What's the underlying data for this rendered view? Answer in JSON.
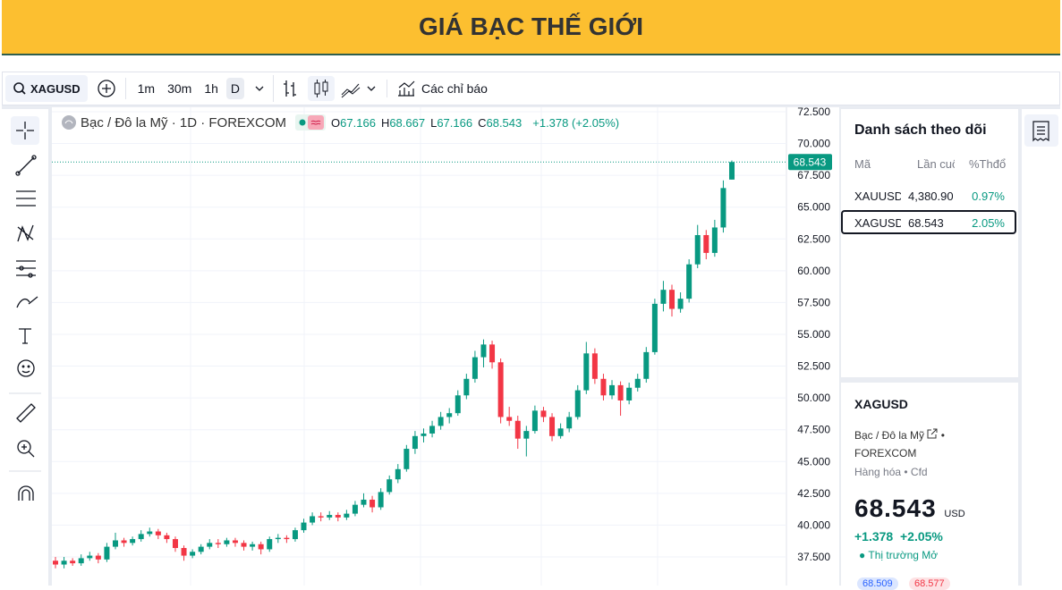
{
  "header": {
    "title": "GIÁ BẠC THẾ GIỚI"
  },
  "toolbar": {
    "symbol": "XAGUSD",
    "intervals": [
      "1m",
      "30m",
      "1h",
      "D"
    ],
    "indicators": "Các chỉ báo"
  },
  "chart_data": {
    "type": "candlestick",
    "title": "Bạc / Đô la Mỹ · 1D · FOREXCOM",
    "legend": [
      {
        "key": "O",
        "value": "67.166"
      },
      {
        "key": "H",
        "value": "68.667"
      },
      {
        "key": "L",
        "value": "67.166"
      },
      {
        "key": "C",
        "value": "68.543"
      }
    ],
    "change": "+1.378 (+2.05%)",
    "ylim": [
      35.25,
      72.85
    ],
    "yticks": [
      {
        "value": 37.5,
        "label": "37.500"
      },
      {
        "value": 40,
        "label": "40.000"
      },
      {
        "value": 42.5,
        "label": "42.500"
      },
      {
        "value": 45,
        "label": "45.000"
      },
      {
        "value": 47.5,
        "label": "47.500"
      },
      {
        "value": 50,
        "label": "50.000"
      },
      {
        "value": 52.5,
        "label": "52.500"
      },
      {
        "value": 55,
        "label": "55.000"
      },
      {
        "value": 57.5,
        "label": "57.500"
      },
      {
        "value": 60,
        "label": "60.000"
      },
      {
        "value": 62.5,
        "label": "62.500"
      },
      {
        "value": 65,
        "label": "65.000"
      },
      {
        "value": 67.5,
        "label": "67.500"
      },
      {
        "value": 70,
        "label": "70.000"
      },
      {
        "value": 72.5,
        "label": "72.500"
      }
    ],
    "grid": true,
    "last_price": {
      "value": 68.543,
      "label": "68.543"
    },
    "up_color": "#089981",
    "down_color": "#f23645",
    "candles": [
      [
        37.2,
        37.5,
        36.6,
        36.9
      ],
      [
        36.9,
        37.5,
        36.6,
        37.2
      ],
      [
        37.2,
        37.4,
        36.8,
        37.0
      ],
      [
        37.0,
        37.7,
        36.8,
        37.4
      ],
      [
        37.4,
        37.9,
        37.2,
        37.6
      ],
      [
        37.6,
        37.8,
        37.0,
        37.3
      ],
      [
        37.3,
        38.6,
        37.1,
        38.3
      ],
      [
        38.3,
        39.4,
        38.1,
        38.8
      ],
      [
        38.8,
        39.0,
        38.3,
        38.6
      ],
      [
        38.6,
        39.1,
        38.4,
        38.9
      ],
      [
        38.9,
        39.6,
        38.7,
        39.3
      ],
      [
        39.3,
        39.8,
        39.1,
        39.5
      ],
      [
        39.5,
        39.7,
        38.9,
        39.2
      ],
      [
        39.2,
        39.4,
        38.6,
        38.9
      ],
      [
        38.9,
        39.1,
        37.9,
        38.2
      ],
      [
        38.2,
        38.4,
        37.2,
        37.6
      ],
      [
        37.6,
        38.1,
        37.4,
        37.9
      ],
      [
        37.9,
        38.5,
        37.7,
        38.3
      ],
      [
        38.3,
        38.9,
        38.1,
        38.6
      ],
      [
        38.6,
        38.9,
        38.2,
        38.5
      ],
      [
        38.5,
        39.0,
        38.3,
        38.8
      ],
      [
        38.8,
        39.0,
        38.3,
        38.6
      ],
      [
        38.6,
        38.8,
        38.0,
        38.3
      ],
      [
        38.3,
        38.7,
        38.0,
        38.5
      ],
      [
        38.5,
        38.7,
        37.7,
        38.1
      ],
      [
        38.1,
        39.1,
        37.9,
        38.9
      ],
      [
        38.9,
        39.3,
        38.6,
        39.0
      ],
      [
        39.0,
        39.2,
        38.6,
        38.9
      ],
      [
        38.9,
        39.8,
        38.7,
        39.6
      ],
      [
        39.6,
        40.5,
        39.4,
        40.2
      ],
      [
        40.2,
        41.0,
        40.0,
        40.7
      ],
      [
        40.7,
        41.0,
        40.3,
        40.6
      ],
      [
        40.6,
        41.1,
        40.4,
        40.8
      ],
      [
        40.8,
        41.0,
        40.3,
        40.6
      ],
      [
        40.6,
        41.2,
        40.4,
        40.9
      ],
      [
        40.9,
        41.9,
        40.7,
        41.6
      ],
      [
        41.6,
        42.5,
        41.4,
        42.0
      ],
      [
        42.0,
        42.3,
        41.0,
        41.4
      ],
      [
        41.4,
        42.9,
        41.2,
        42.6
      ],
      [
        42.6,
        43.9,
        42.4,
        43.6
      ],
      [
        43.6,
        44.8,
        43.3,
        44.4
      ],
      [
        44.4,
        46.3,
        44.2,
        46.0
      ],
      [
        46.0,
        47.4,
        45.6,
        47.0
      ],
      [
        47.0,
        47.6,
        46.5,
        47.2
      ],
      [
        47.2,
        48.2,
        46.9,
        47.8
      ],
      [
        47.8,
        48.9,
        47.5,
        48.5
      ],
      [
        48.5,
        49.2,
        48.0,
        48.8
      ],
      [
        48.8,
        50.6,
        48.6,
        50.2
      ],
      [
        50.2,
        51.9,
        49.9,
        51.5
      ],
      [
        51.5,
        53.7,
        51.2,
        53.2
      ],
      [
        53.2,
        54.6,
        52.4,
        54.2
      ],
      [
        54.2,
        54.5,
        52.3,
        52.8
      ],
      [
        52.8,
        53.1,
        48.0,
        48.5
      ],
      [
        48.5,
        49.3,
        47.8,
        48.2
      ],
      [
        48.2,
        48.6,
        46.0,
        46.8
      ],
      [
        46.8,
        47.8,
        45.4,
        47.4
      ],
      [
        47.4,
        49.4,
        47.2,
        49.0
      ],
      [
        49.0,
        49.3,
        48.1,
        48.5
      ],
      [
        48.5,
        48.8,
        46.6,
        47.0
      ],
      [
        47.0,
        48.0,
        46.8,
        47.6
      ],
      [
        47.6,
        48.9,
        47.3,
        48.5
      ],
      [
        48.5,
        51.0,
        48.3,
        50.6
      ],
      [
        50.6,
        54.4,
        50.3,
        53.5
      ],
      [
        53.5,
        53.9,
        51.1,
        51.5
      ],
      [
        51.5,
        51.9,
        49.8,
        50.2
      ],
      [
        50.2,
        51.4,
        49.9,
        51.0
      ],
      [
        51.0,
        51.3,
        48.6,
        49.8
      ],
      [
        49.8,
        51.2,
        49.5,
        50.8
      ],
      [
        50.8,
        51.9,
        50.5,
        51.5
      ],
      [
        51.5,
        54.0,
        51.2,
        53.6
      ],
      [
        53.6,
        57.8,
        53.4,
        57.4
      ],
      [
        57.4,
        59.2,
        56.8,
        58.5
      ],
      [
        58.5,
        58.9,
        56.4,
        57.0
      ],
      [
        57.0,
        58.3,
        56.7,
        57.8
      ],
      [
        57.8,
        60.9,
        57.5,
        60.5
      ],
      [
        60.5,
        63.6,
        60.2,
        62.8
      ],
      [
        62.8,
        63.2,
        60.9,
        61.4
      ],
      [
        61.4,
        64.0,
        61.1,
        63.4
      ],
      [
        63.4,
        67.1,
        63.0,
        66.5
      ],
      [
        67.166,
        68.667,
        67.166,
        68.543
      ]
    ]
  },
  "watchlist": {
    "title": "Danh sách theo dõi",
    "columns": [
      "Mã",
      "Lần cuối",
      "%Thđổ"
    ],
    "rows": [
      [
        "XAUUSD",
        "4,380.90",
        "0.97%"
      ],
      [
        "XAGUSD",
        "68.543",
        "2.05%"
      ]
    ]
  },
  "detail": {
    "symbol": "XAGUSD",
    "name": "Bạc / Đô la Mỹ",
    "exchange": "FOREXCOM",
    "category": "Hàng hóa",
    "kind": "Cfd",
    "price": "68.543",
    "currency": "USD",
    "change": "+1.378",
    "change_pct": "+2.05%",
    "status": "Thị trường Mở",
    "bid": "68.509",
    "ask": "68.577"
  }
}
